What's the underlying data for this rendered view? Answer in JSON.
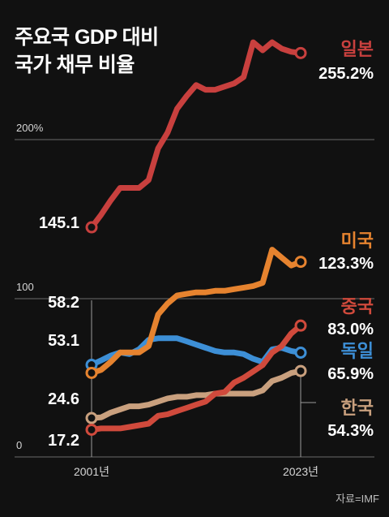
{
  "header": {
    "title_line1": "주요국 GDP 대비",
    "title_line2": "국가 채무 비율"
  },
  "source": "자료=IMF",
  "chart_data": {
    "type": "line",
    "title": "주요국 GDP 대비 국가 채무 비율",
    "x": [
      2001,
      2002,
      2003,
      2004,
      2005,
      2006,
      2007,
      2008,
      2009,
      2010,
      2011,
      2012,
      2013,
      2014,
      2015,
      2016,
      2017,
      2018,
      2019,
      2020,
      2021,
      2022,
      2023
    ],
    "x_tick_labels": [
      "2001년",
      "2023년"
    ],
    "y_tick_labels": [
      "200%",
      "100",
      "0"
    ],
    "ylim": [
      0,
      265
    ],
    "grid": true,
    "series": [
      {
        "name": "일본",
        "color": "#c8403e",
        "values": [
          145.1,
          153,
          162,
          170,
          170,
          170,
          175,
          195,
          205,
          220,
          228,
          235,
          232,
          232,
          234,
          236,
          240,
          262,
          257,
          262,
          258,
          256,
          255.2
        ],
        "end_label": "255.2%"
      },
      {
        "name": "미국",
        "color": "#e6832f",
        "values": [
          53.1,
          55,
          60,
          66,
          66,
          66,
          70,
          90,
          97,
          102,
          103,
          104,
          104,
          105,
          105,
          106,
          107,
          108,
          110,
          131,
          126,
          121,
          123.3
        ],
        "end_label": "123.3%"
      },
      {
        "name": "중국",
        "color": "#d04a3c",
        "values": [
          17.2,
          18,
          18,
          18,
          19,
          20,
          21,
          26,
          27,
          29,
          31,
          33,
          35,
          40,
          41,
          47,
          50,
          54,
          58,
          66,
          70,
          78,
          83.0
        ],
        "end_label": "83.0%"
      },
      {
        "name": "독일",
        "color": "#3d8fd6",
        "values": [
          58.2,
          61,
          64,
          66,
          65,
          68,
          74,
          75,
          75,
          75,
          73,
          71,
          69,
          67,
          66,
          66,
          65,
          62,
          60,
          68,
          69,
          67,
          65.9
        ],
        "end_label": "65.9%"
      },
      {
        "name": "한국",
        "color": "#c9a07e",
        "values": [
          24.6,
          25,
          28,
          30,
          32,
          32,
          33,
          35,
          37,
          38,
          38,
          39,
          39,
          40,
          40,
          40,
          40,
          40,
          42,
          48,
          50,
          53,
          54.3
        ],
        "end_label": "54.3%"
      }
    ],
    "start_labels": [
      {
        "series": "일본",
        "text": "145.1"
      },
      {
        "series": "독일",
        "text": "58.2"
      },
      {
        "series": "미국",
        "text": "53.1"
      },
      {
        "series": "한국",
        "text": "24.6"
      },
      {
        "series": "중국",
        "text": "17.2"
      }
    ]
  }
}
